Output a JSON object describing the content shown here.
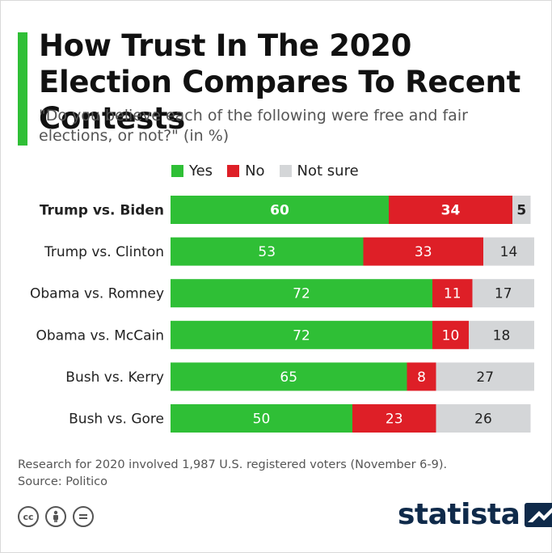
{
  "title": "How Trust In The 2020 Election Compares To Recent Contests",
  "subtitle": "\"Do you believe each of the following were free and fair elections, or not?\" (in %)",
  "legend": {
    "yes": "Yes",
    "no": "No",
    "not_sure": "Not sure"
  },
  "colors": {
    "yes": "#2fbf36",
    "no": "#de1f27",
    "not_sure": "#d4d6d8",
    "accent": "#2fbf36",
    "brand": "#0f2a4a"
  },
  "chart_data": {
    "type": "bar",
    "orientation": "horizontal",
    "stacked": true,
    "categories": [
      "Trump vs. Biden",
      "Trump vs. Clinton",
      "Obama vs. Romney",
      "Obama vs. McCain",
      "Bush vs. Kerry",
      "Bush vs. Gore"
    ],
    "highlight_category": "Trump vs. Biden",
    "series": [
      {
        "name": "Yes",
        "values": [
          60,
          53,
          72,
          72,
          65,
          50
        ]
      },
      {
        "name": "No",
        "values": [
          34,
          33,
          11,
          10,
          8,
          23
        ]
      },
      {
        "name": "Not sure",
        "values": [
          5,
          14,
          17,
          18,
          27,
          26
        ]
      }
    ],
    "xlim": [
      0,
      100
    ],
    "legend_position": "top",
    "grid": false
  },
  "footer": {
    "note": "Research for 2020 involved 1,987 U.S. registered voters (November 6-9).",
    "source": "Source: Politico",
    "brand": "statista"
  },
  "icons": [
    "cc-icon",
    "attribution-icon",
    "no-derivatives-icon",
    "statista-logo-icon"
  ]
}
